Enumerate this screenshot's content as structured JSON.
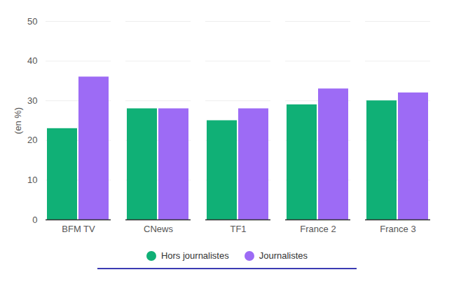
{
  "chart_data": {
    "type": "bar",
    "categories": [
      "BFM TV",
      "CNews",
      "TF1",
      "France 2",
      "France 3"
    ],
    "series": [
      {
        "name": "Hors journalistes",
        "color": "#10b076",
        "values": [
          23,
          28,
          25,
          29,
          30
        ]
      },
      {
        "name": "Journalistes",
        "color": "#9d6bf5",
        "values": [
          36,
          28,
          28,
          33,
          32
        ]
      }
    ],
    "y_label": "(en %)",
    "ylim": [
      0,
      50
    ],
    "yticks": [
      0,
      10,
      20,
      30,
      40,
      50
    ],
    "grid": true,
    "legend": "bottom"
  }
}
